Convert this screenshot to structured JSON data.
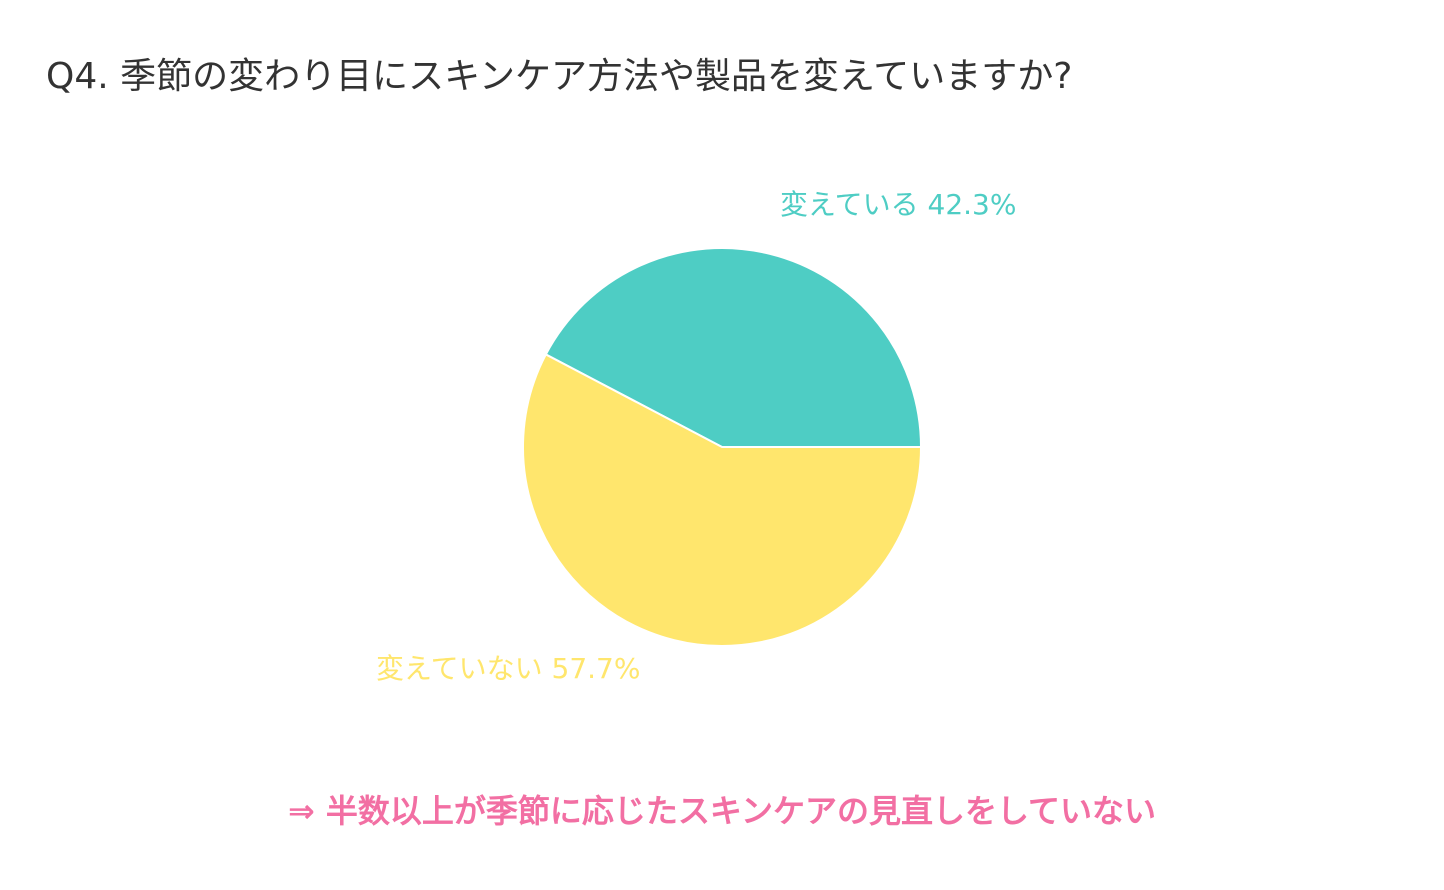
{
  "title": "Q4. 季節の変わり目にスキンケア方法や製品を変えていますか?",
  "chart_data": {
    "type": "pie",
    "title": "Q4. 季節の変わり目にスキンケア方法や製品を変えていますか?",
    "slices": [
      {
        "label": "変えている 42.3%",
        "value": 42.3,
        "color": "#4ecdc4"
      },
      {
        "label": "変えていない 57.7%",
        "value": 57.7,
        "color": "#ffe66d"
      }
    ],
    "start_angle_deg": 0,
    "direction": "counterclockwise",
    "legend": "none"
  },
  "conclusion": "⇒ 半数以上が季節に応じたスキンケアの見直しをしていない"
}
